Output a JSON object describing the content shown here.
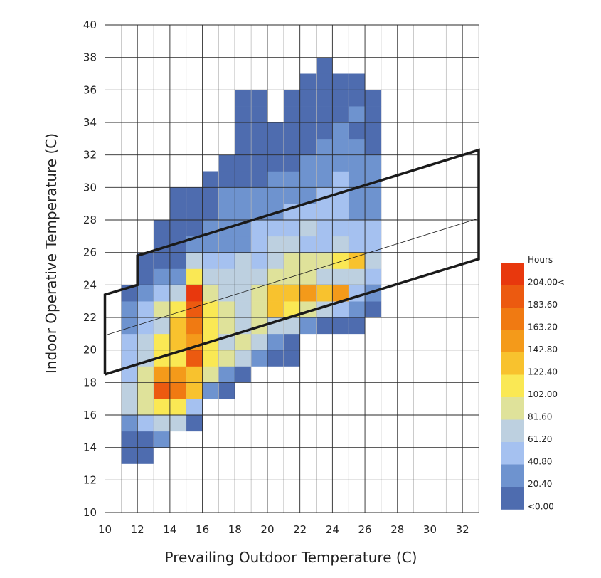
{
  "chart_data": {
    "type": "heatmap",
    "xlabel": "Prevailing Outdoor Temperature (C)",
    "ylabel": "Indoor Operative Temperature (C)",
    "xlim": [
      10,
      33
    ],
    "ylim": [
      10,
      40
    ],
    "x_ticks": [
      10,
      12,
      14,
      16,
      18,
      20,
      22,
      24,
      26,
      28,
      30,
      32
    ],
    "y_ticks": [
      10,
      12,
      14,
      16,
      18,
      20,
      22,
      24,
      26,
      28,
      30,
      32,
      34,
      36,
      38,
      40
    ],
    "cell_size": {
      "x": 1,
      "y": 1
    },
    "legend": {
      "title": "Hours",
      "labels": [
        "204.00<",
        "183.60",
        "163.20",
        "142.80",
        "122.40",
        "102.00",
        "81.60",
        "61.20",
        "40.80",
        "20.40",
        "<0.00"
      ],
      "colors": [
        "#E8380D",
        "#EC5A10",
        "#F07A12",
        "#F49A1A",
        "#F8C22E",
        "#FAE854",
        "#DFE29A",
        "#BDD0E0",
        "#A5C1F0",
        "#6E93CF",
        "#4E6CAF"
      ]
    },
    "comfort_zone": {
      "outer_polygon": [
        [
          10,
          18.5
        ],
        [
          33,
          25.6
        ],
        [
          33,
          32.3
        ],
        [
          12,
          25.8
        ],
        [
          12,
          24
        ],
        [
          10,
          23.4
        ],
        [
          10,
          18.5
        ]
      ],
      "neutral_line": [
        [
          10,
          20.9
        ],
        [
          33,
          28.1
        ]
      ]
    },
    "cells": [
      {
        "x": 11,
        "y": 13,
        "level": 0
      },
      {
        "x": 12,
        "y": 13,
        "level": 0
      },
      {
        "x": 11,
        "y": 14,
        "level": 0
      },
      {
        "x": 12,
        "y": 14,
        "level": 0
      },
      {
        "x": 13,
        "y": 14,
        "level": 1
      },
      {
        "x": 11,
        "y": 15,
        "level": 1
      },
      {
        "x": 12,
        "y": 15,
        "level": 2
      },
      {
        "x": 13,
        "y": 15,
        "level": 3
      },
      {
        "x": 14,
        "y": 15,
        "level": 3
      },
      {
        "x": 15,
        "y": 15,
        "level": 0
      },
      {
        "x": 11,
        "y": 16,
        "level": 3
      },
      {
        "x": 12,
        "y": 16,
        "level": 4
      },
      {
        "x": 13,
        "y": 16,
        "level": 5
      },
      {
        "x": 14,
        "y": 16,
        "level": 5
      },
      {
        "x": 15,
        "y": 16,
        "level": 2
      },
      {
        "x": 11,
        "y": 17,
        "level": 3
      },
      {
        "x": 12,
        "y": 17,
        "level": 4
      },
      {
        "x": 13,
        "y": 17,
        "level": 9
      },
      {
        "x": 14,
        "y": 17,
        "level": 8
      },
      {
        "x": 15,
        "y": 17,
        "level": 6
      },
      {
        "x": 16,
        "y": 17,
        "level": 1
      },
      {
        "x": 17,
        "y": 17,
        "level": 0
      },
      {
        "x": 11,
        "y": 18,
        "level": 2
      },
      {
        "x": 12,
        "y": 18,
        "level": 4
      },
      {
        "x": 13,
        "y": 18,
        "level": 7
      },
      {
        "x": 14,
        "y": 18,
        "level": 7
      },
      {
        "x": 15,
        "y": 18,
        "level": 6
      },
      {
        "x": 16,
        "y": 18,
        "level": 4
      },
      {
        "x": 17,
        "y": 18,
        "level": 1
      },
      {
        "x": 18,
        "y": 18,
        "level": 0
      },
      {
        "x": 11,
        "y": 19,
        "level": 2
      },
      {
        "x": 12,
        "y": 19,
        "level": 3
      },
      {
        "x": 13,
        "y": 19,
        "level": 5
      },
      {
        "x": 14,
        "y": 19,
        "level": 5
      },
      {
        "x": 15,
        "y": 19,
        "level": 9
      },
      {
        "x": 16,
        "y": 19,
        "level": 5
      },
      {
        "x": 17,
        "y": 19,
        "level": 4
      },
      {
        "x": 18,
        "y": 19,
        "level": 3
      },
      {
        "x": 19,
        "y": 19,
        "level": 1
      },
      {
        "x": 20,
        "y": 19,
        "level": 0
      },
      {
        "x": 21,
        "y": 19,
        "level": 0
      },
      {
        "x": 11,
        "y": 20,
        "level": 2
      },
      {
        "x": 12,
        "y": 20,
        "level": 3
      },
      {
        "x": 13,
        "y": 20,
        "level": 5
      },
      {
        "x": 14,
        "y": 20,
        "level": 6
      },
      {
        "x": 15,
        "y": 20,
        "level": 7
      },
      {
        "x": 16,
        "y": 20,
        "level": 5
      },
      {
        "x": 17,
        "y": 20,
        "level": 3
      },
      {
        "x": 18,
        "y": 20,
        "level": 4
      },
      {
        "x": 19,
        "y": 20,
        "level": 3
      },
      {
        "x": 20,
        "y": 20,
        "level": 1
      },
      {
        "x": 21,
        "y": 20,
        "level": 0
      },
      {
        "x": 11,
        "y": 21,
        "level": 1
      },
      {
        "x": 12,
        "y": 21,
        "level": 2
      },
      {
        "x": 13,
        "y": 21,
        "level": 3
      },
      {
        "x": 14,
        "y": 21,
        "level": 6
      },
      {
        "x": 15,
        "y": 21,
        "level": 8
      },
      {
        "x": 16,
        "y": 21,
        "level": 5
      },
      {
        "x": 17,
        "y": 21,
        "level": 4
      },
      {
        "x": 18,
        "y": 21,
        "level": 3
      },
      {
        "x": 19,
        "y": 21,
        "level": 4
      },
      {
        "x": 20,
        "y": 21,
        "level": 3
      },
      {
        "x": 21,
        "y": 21,
        "level": 3
      },
      {
        "x": 22,
        "y": 21,
        "level": 1
      },
      {
        "x": 23,
        "y": 21,
        "level": 0
      },
      {
        "x": 24,
        "y": 21,
        "level": 0
      },
      {
        "x": 25,
        "y": 21,
        "level": 0
      },
      {
        "x": 11,
        "y": 22,
        "level": 1
      },
      {
        "x": 12,
        "y": 22,
        "level": 2
      },
      {
        "x": 13,
        "y": 22,
        "level": 4
      },
      {
        "x": 14,
        "y": 22,
        "level": 5
      },
      {
        "x": 15,
        "y": 22,
        "level": 9
      },
      {
        "x": 16,
        "y": 22,
        "level": 5
      },
      {
        "x": 17,
        "y": 22,
        "level": 4
      },
      {
        "x": 18,
        "y": 22,
        "level": 3
      },
      {
        "x": 19,
        "y": 22,
        "level": 4
      },
      {
        "x": 20,
        "y": 22,
        "level": 6
      },
      {
        "x": 21,
        "y": 22,
        "level": 5
      },
      {
        "x": 22,
        "y": 22,
        "level": 4
      },
      {
        "x": 23,
        "y": 22,
        "level": 3
      },
      {
        "x": 24,
        "y": 22,
        "level": 2
      },
      {
        "x": 25,
        "y": 22,
        "level": 1
      },
      {
        "x": 26,
        "y": 22,
        "level": 0
      },
      {
        "x": 11,
        "y": 23,
        "level": 0
      },
      {
        "x": 12,
        "y": 23,
        "level": 1
      },
      {
        "x": 13,
        "y": 23,
        "level": 2
      },
      {
        "x": 14,
        "y": 23,
        "level": 3
      },
      {
        "x": 15,
        "y": 23,
        "level": 10
      },
      {
        "x": 16,
        "y": 23,
        "level": 4
      },
      {
        "x": 17,
        "y": 23,
        "level": 3
      },
      {
        "x": 18,
        "y": 23,
        "level": 3
      },
      {
        "x": 19,
        "y": 23,
        "level": 4
      },
      {
        "x": 20,
        "y": 23,
        "level": 6
      },
      {
        "x": 21,
        "y": 23,
        "level": 6
      },
      {
        "x": 22,
        "y": 23,
        "level": 7
      },
      {
        "x": 23,
        "y": 23,
        "level": 6
      },
      {
        "x": 24,
        "y": 23,
        "level": 7
      },
      {
        "x": 25,
        "y": 23,
        "level": 2
      },
      {
        "x": 26,
        "y": 23,
        "level": 1
      },
      {
        "x": 12,
        "y": 24,
        "level": 0
      },
      {
        "x": 13,
        "y": 24,
        "level": 1
      },
      {
        "x": 14,
        "y": 24,
        "level": 1
      },
      {
        "x": 15,
        "y": 24,
        "level": 5
      },
      {
        "x": 16,
        "y": 24,
        "level": 3
      },
      {
        "x": 17,
        "y": 24,
        "level": 3
      },
      {
        "x": 18,
        "y": 24,
        "level": 3
      },
      {
        "x": 19,
        "y": 24,
        "level": 3
      },
      {
        "x": 20,
        "y": 24,
        "level": 4
      },
      {
        "x": 21,
        "y": 24,
        "level": 4
      },
      {
        "x": 22,
        "y": 24,
        "level": 4
      },
      {
        "x": 23,
        "y": 24,
        "level": 3
      },
      {
        "x": 24,
        "y": 24,
        "level": 3
      },
      {
        "x": 25,
        "y": 24,
        "level": 3
      },
      {
        "x": 26,
        "y": 24,
        "level": 2
      },
      {
        "x": 12,
        "y": 25,
        "level": 0
      },
      {
        "x": 13,
        "y": 25,
        "level": 0
      },
      {
        "x": 14,
        "y": 25,
        "level": 0
      },
      {
        "x": 15,
        "y": 25,
        "level": 3
      },
      {
        "x": 16,
        "y": 25,
        "level": 2
      },
      {
        "x": 17,
        "y": 25,
        "level": 2
      },
      {
        "x": 18,
        "y": 25,
        "level": 3
      },
      {
        "x": 19,
        "y": 25,
        "level": 2
      },
      {
        "x": 20,
        "y": 25,
        "level": 3
      },
      {
        "x": 21,
        "y": 25,
        "level": 4
      },
      {
        "x": 22,
        "y": 25,
        "level": 4
      },
      {
        "x": 23,
        "y": 25,
        "level": 4
      },
      {
        "x": 24,
        "y": 25,
        "level": 5
      },
      {
        "x": 25,
        "y": 25,
        "level": 6
      },
      {
        "x": 26,
        "y": 25,
        "level": 3
      },
      {
        "x": 13,
        "y": 26,
        "level": 0
      },
      {
        "x": 14,
        "y": 26,
        "level": 0
      },
      {
        "x": 15,
        "y": 26,
        "level": 1
      },
      {
        "x": 16,
        "y": 26,
        "level": 1
      },
      {
        "x": 17,
        "y": 26,
        "level": 1
      },
      {
        "x": 18,
        "y": 26,
        "level": 1
      },
      {
        "x": 19,
        "y": 26,
        "level": 2
      },
      {
        "x": 20,
        "y": 26,
        "level": 3
      },
      {
        "x": 21,
        "y": 26,
        "level": 3
      },
      {
        "x": 22,
        "y": 26,
        "level": 2
      },
      {
        "x": 23,
        "y": 26,
        "level": 2
      },
      {
        "x": 24,
        "y": 26,
        "level": 3
      },
      {
        "x": 25,
        "y": 26,
        "level": 2
      },
      {
        "x": 26,
        "y": 26,
        "level": 2
      },
      {
        "x": 13,
        "y": 27,
        "level": 0
      },
      {
        "x": 14,
        "y": 27,
        "level": 0
      },
      {
        "x": 15,
        "y": 27,
        "level": 0
      },
      {
        "x": 16,
        "y": 27,
        "level": 1
      },
      {
        "x": 17,
        "y": 27,
        "level": 1
      },
      {
        "x": 18,
        "y": 27,
        "level": 1
      },
      {
        "x": 19,
        "y": 27,
        "level": 2
      },
      {
        "x": 20,
        "y": 27,
        "level": 2
      },
      {
        "x": 21,
        "y": 27,
        "level": 2
      },
      {
        "x": 22,
        "y": 27,
        "level": 3
      },
      {
        "x": 23,
        "y": 27,
        "level": 2
      },
      {
        "x": 24,
        "y": 27,
        "level": 2
      },
      {
        "x": 25,
        "y": 27,
        "level": 2
      },
      {
        "x": 26,
        "y": 27,
        "level": 2
      },
      {
        "x": 14,
        "y": 28,
        "level": 0
      },
      {
        "x": 15,
        "y": 28,
        "level": 0
      },
      {
        "x": 16,
        "y": 28,
        "level": 0
      },
      {
        "x": 17,
        "y": 28,
        "level": 1
      },
      {
        "x": 18,
        "y": 28,
        "level": 1
      },
      {
        "x": 19,
        "y": 28,
        "level": 1
      },
      {
        "x": 20,
        "y": 28,
        "level": 1
      },
      {
        "x": 21,
        "y": 28,
        "level": 2
      },
      {
        "x": 22,
        "y": 28,
        "level": 2
      },
      {
        "x": 23,
        "y": 28,
        "level": 2
      },
      {
        "x": 24,
        "y": 28,
        "level": 2
      },
      {
        "x": 25,
        "y": 28,
        "level": 1
      },
      {
        "x": 26,
        "y": 28,
        "level": 1
      },
      {
        "x": 14,
        "y": 29,
        "level": 0
      },
      {
        "x": 15,
        "y": 29,
        "level": 0
      },
      {
        "x": 16,
        "y": 29,
        "level": 0
      },
      {
        "x": 17,
        "y": 29,
        "level": 1
      },
      {
        "x": 18,
        "y": 29,
        "level": 1
      },
      {
        "x": 19,
        "y": 29,
        "level": 1
      },
      {
        "x": 20,
        "y": 29,
        "level": 1
      },
      {
        "x": 21,
        "y": 29,
        "level": 1
      },
      {
        "x": 22,
        "y": 29,
        "level": 1
      },
      {
        "x": 23,
        "y": 29,
        "level": 2
      },
      {
        "x": 24,
        "y": 29,
        "level": 2
      },
      {
        "x": 25,
        "y": 29,
        "level": 1
      },
      {
        "x": 26,
        "y": 29,
        "level": 1
      },
      {
        "x": 16,
        "y": 30,
        "level": 0
      },
      {
        "x": 17,
        "y": 30,
        "level": 0
      },
      {
        "x": 18,
        "y": 30,
        "level": 0
      },
      {
        "x": 19,
        "y": 30,
        "level": 0
      },
      {
        "x": 20,
        "y": 30,
        "level": 1
      },
      {
        "x": 21,
        "y": 30,
        "level": 1
      },
      {
        "x": 22,
        "y": 30,
        "level": 1
      },
      {
        "x": 23,
        "y": 30,
        "level": 1
      },
      {
        "x": 24,
        "y": 30,
        "level": 2
      },
      {
        "x": 25,
        "y": 30,
        "level": 1
      },
      {
        "x": 26,
        "y": 30,
        "level": 1
      },
      {
        "x": 17,
        "y": 31,
        "level": 0
      },
      {
        "x": 18,
        "y": 31,
        "level": 0
      },
      {
        "x": 19,
        "y": 31,
        "level": 0
      },
      {
        "x": 20,
        "y": 31,
        "level": 0
      },
      {
        "x": 21,
        "y": 31,
        "level": 0
      },
      {
        "x": 22,
        "y": 31,
        "level": 1
      },
      {
        "x": 23,
        "y": 31,
        "level": 1
      },
      {
        "x": 24,
        "y": 31,
        "level": 1
      },
      {
        "x": 25,
        "y": 31,
        "level": 1
      },
      {
        "x": 26,
        "y": 31,
        "level": 1
      },
      {
        "x": 18,
        "y": 32,
        "level": 0
      },
      {
        "x": 19,
        "y": 32,
        "level": 0
      },
      {
        "x": 20,
        "y": 32,
        "level": 0
      },
      {
        "x": 21,
        "y": 32,
        "level": 0
      },
      {
        "x": 22,
        "y": 32,
        "level": 0
      },
      {
        "x": 23,
        "y": 32,
        "level": 1
      },
      {
        "x": 24,
        "y": 32,
        "level": 1
      },
      {
        "x": 25,
        "y": 32,
        "level": 1
      },
      {
        "x": 26,
        "y": 32,
        "level": 0
      },
      {
        "x": 18,
        "y": 33,
        "level": 0
      },
      {
        "x": 19,
        "y": 33,
        "level": 0
      },
      {
        "x": 20,
        "y": 33,
        "level": 0
      },
      {
        "x": 21,
        "y": 33,
        "level": 0
      },
      {
        "x": 22,
        "y": 33,
        "level": 0
      },
      {
        "x": 23,
        "y": 33,
        "level": 0
      },
      {
        "x": 24,
        "y": 33,
        "level": 1
      },
      {
        "x": 25,
        "y": 33,
        "level": 0
      },
      {
        "x": 26,
        "y": 33,
        "level": 0
      },
      {
        "x": 18,
        "y": 34,
        "level": 0
      },
      {
        "x": 19,
        "y": 34,
        "level": 0
      },
      {
        "x": 21,
        "y": 34,
        "level": 0
      },
      {
        "x": 22,
        "y": 34,
        "level": 0
      },
      {
        "x": 23,
        "y": 34,
        "level": 0
      },
      {
        "x": 24,
        "y": 34,
        "level": 0
      },
      {
        "x": 25,
        "y": 34,
        "level": 1
      },
      {
        "x": 26,
        "y": 34,
        "level": 0
      },
      {
        "x": 18,
        "y": 35,
        "level": 0
      },
      {
        "x": 19,
        "y": 35,
        "level": 0
      },
      {
        "x": 21,
        "y": 35,
        "level": 0
      },
      {
        "x": 22,
        "y": 35,
        "level": 0
      },
      {
        "x": 23,
        "y": 35,
        "level": 0
      },
      {
        "x": 24,
        "y": 35,
        "level": 0
      },
      {
        "x": 25,
        "y": 35,
        "level": 0
      },
      {
        "x": 26,
        "y": 35,
        "level": 0
      },
      {
        "x": 22,
        "y": 36,
        "level": 0
      },
      {
        "x": 23,
        "y": 36,
        "level": 0
      },
      {
        "x": 24,
        "y": 36,
        "level": 0
      },
      {
        "x": 25,
        "y": 36,
        "level": 0
      },
      {
        "x": 23,
        "y": 37,
        "level": 0
      }
    ]
  }
}
